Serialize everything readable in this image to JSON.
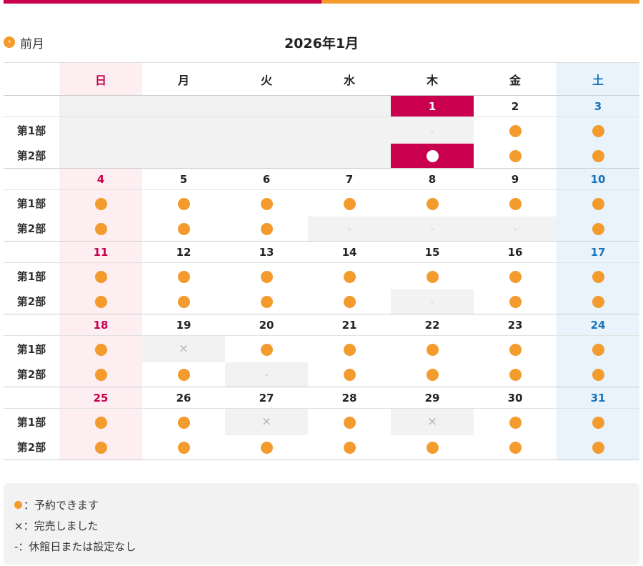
{
  "colors": {
    "accent_magenta": "#c8004e",
    "accent_orange": "#f39b2c",
    "sunday": "#c8004e",
    "saturday": "#1a73b8"
  },
  "nav": {
    "prev_label": "前月",
    "prev_icon": "chevron-left-icon"
  },
  "title": "2026年1月",
  "weekdays": [
    "日",
    "月",
    "火",
    "水",
    "木",
    "金",
    "土"
  ],
  "slot_labels": [
    "第1部",
    "第2部"
  ],
  "weeks": [
    {
      "dates": [
        "",
        "",
        "",
        "",
        "1",
        "2",
        "3"
      ],
      "slot1": [
        "blank",
        "blank",
        "blank",
        "blank",
        "-",
        "●",
        "●"
      ],
      "slot2": [
        "blank",
        "blank",
        "blank",
        "blank",
        "○",
        "●",
        "●"
      ]
    },
    {
      "dates": [
        "4",
        "5",
        "6",
        "7",
        "8",
        "9",
        "10"
      ],
      "slot1": [
        "●",
        "●",
        "●",
        "●",
        "●",
        "●",
        "●"
      ],
      "slot2": [
        "●",
        "●",
        "●",
        "-",
        "-",
        "-",
        "●"
      ]
    },
    {
      "dates": [
        "11",
        "12",
        "13",
        "14",
        "15",
        "16",
        "17"
      ],
      "slot1": [
        "●",
        "●",
        "●",
        "●",
        "●",
        "●",
        "●"
      ],
      "slot2": [
        "●",
        "●",
        "●",
        "●",
        "-",
        "●",
        "●"
      ]
    },
    {
      "dates": [
        "18",
        "19",
        "20",
        "21",
        "22",
        "23",
        "24"
      ],
      "slot1": [
        "●",
        "×",
        "●",
        "●",
        "●",
        "●",
        "●"
      ],
      "slot2": [
        "●",
        "●",
        "-",
        "●",
        "●",
        "●",
        "●"
      ]
    },
    {
      "dates": [
        "25",
        "26",
        "27",
        "28",
        "29",
        "30",
        "31"
      ],
      "slot1": [
        "●",
        "●",
        "×",
        "●",
        "×",
        "●",
        "●"
      ],
      "slot2": [
        "●",
        "●",
        "●",
        "●",
        "●",
        "●",
        "●"
      ]
    }
  ],
  "today": "1",
  "legend": {
    "available": "：予約できます",
    "soldout": "×：完売しました",
    "closed": "-：休館日または設定なし"
  }
}
